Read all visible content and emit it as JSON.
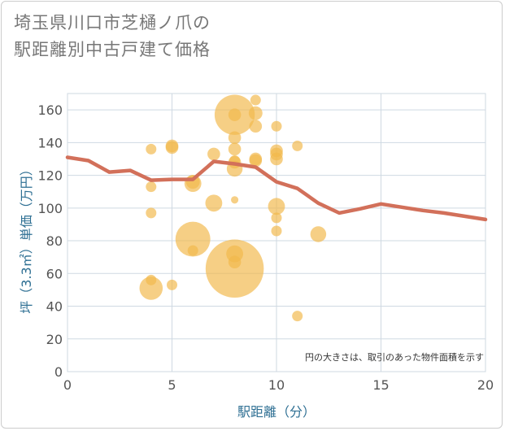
{
  "title_line1": "埼玉県川口市芝樋ノ爪の",
  "title_line2": "駅距離別中古戸建て価格",
  "chart_data": {
    "type": "scatter",
    "xlabel": "駅距離（分）",
    "ylabel": "坪（3.3㎡）単価（万円）",
    "xlim": [
      0,
      20
    ],
    "ylim": [
      0,
      170
    ],
    "xticks": [
      0,
      5,
      10,
      15,
      20
    ],
    "yticks": [
      0,
      20,
      40,
      60,
      80,
      100,
      120,
      140,
      160
    ],
    "grid": true,
    "note": "円の大きさは、取引のあった物件面積を示す",
    "colors": {
      "bubble": "#f2b84b",
      "line": "#d2705a",
      "grid": "#cfd9e2",
      "axis_text": "#2e6f93"
    },
    "scatter": [
      {
        "x": 4,
        "y": 136,
        "s": 1.0
      },
      {
        "x": 4,
        "y": 113,
        "s": 1.0
      },
      {
        "x": 4,
        "y": 97,
        "s": 1.0
      },
      {
        "x": 4,
        "y": 56,
        "s": 1.0
      },
      {
        "x": 4,
        "y": 51,
        "s": 2.2
      },
      {
        "x": 5,
        "y": 138,
        "s": 1.2
      },
      {
        "x": 5,
        "y": 137,
        "s": 1.2
      },
      {
        "x": 5,
        "y": 53,
        "s": 1.0
      },
      {
        "x": 6,
        "y": 116,
        "s": 1.3
      },
      {
        "x": 6,
        "y": 115,
        "s": 1.6
      },
      {
        "x": 6,
        "y": 81,
        "s": 3.3
      },
      {
        "x": 6,
        "y": 74,
        "s": 1.0
      },
      {
        "x": 7,
        "y": 133,
        "s": 1.2
      },
      {
        "x": 7,
        "y": 103,
        "s": 1.6
      },
      {
        "x": 8,
        "y": 157,
        "s": 3.8
      },
      {
        "x": 8,
        "y": 157,
        "s": 1.2
      },
      {
        "x": 8,
        "y": 143,
        "s": 1.2
      },
      {
        "x": 8,
        "y": 136,
        "s": 1.2
      },
      {
        "x": 8,
        "y": 129,
        "s": 1.0
      },
      {
        "x": 8,
        "y": 128,
        "s": 1.2
      },
      {
        "x": 8,
        "y": 124,
        "s": 1.5
      },
      {
        "x": 8,
        "y": 105,
        "s": 0.7
      },
      {
        "x": 8,
        "y": 72,
        "s": 1.6
      },
      {
        "x": 8,
        "y": 67,
        "s": 1.2
      },
      {
        "x": 8,
        "y": 63,
        "s": 5.5
      },
      {
        "x": 9,
        "y": 166,
        "s": 1.0
      },
      {
        "x": 9,
        "y": 158,
        "s": 1.3
      },
      {
        "x": 9,
        "y": 150,
        "s": 1.2
      },
      {
        "x": 9,
        "y": 130,
        "s": 1.2
      },
      {
        "x": 9,
        "y": 129,
        "s": 1.2
      },
      {
        "x": 10,
        "y": 150,
        "s": 1.0
      },
      {
        "x": 10,
        "y": 135,
        "s": 1.2
      },
      {
        "x": 10,
        "y": 133,
        "s": 1.2
      },
      {
        "x": 10,
        "y": 130,
        "s": 1.2
      },
      {
        "x": 10,
        "y": 101,
        "s": 1.6
      },
      {
        "x": 10,
        "y": 94,
        "s": 1.0
      },
      {
        "x": 10,
        "y": 86,
        "s": 1.0
      },
      {
        "x": 11,
        "y": 138,
        "s": 1.0
      },
      {
        "x": 11,
        "y": 34,
        "s": 1.0
      },
      {
        "x": 12,
        "y": 84,
        "s": 1.5
      }
    ],
    "line": [
      {
        "x": 0,
        "y": 131
      },
      {
        "x": 1,
        "y": 129
      },
      {
        "x": 2,
        "y": 122
      },
      {
        "x": 3,
        "y": 123
      },
      {
        "x": 4,
        "y": 117
      },
      {
        "x": 5,
        "y": 117.5
      },
      {
        "x": 6,
        "y": 117.5
      },
      {
        "x": 7,
        "y": 128.5
      },
      {
        "x": 8,
        "y": 127
      },
      {
        "x": 9,
        "y": 125
      },
      {
        "x": 10,
        "y": 116
      },
      {
        "x": 11,
        "y": 112
      },
      {
        "x": 12,
        "y": 103
      },
      {
        "x": 13,
        "y": 97
      },
      {
        "x": 14,
        "y": 99.5
      },
      {
        "x": 15,
        "y": 102.5
      },
      {
        "x": 16,
        "y": 100.5
      },
      {
        "x": 17,
        "y": 98.5
      },
      {
        "x": 18,
        "y": 97
      },
      {
        "x": 19,
        "y": 95
      },
      {
        "x": 20,
        "y": 93
      }
    ]
  }
}
